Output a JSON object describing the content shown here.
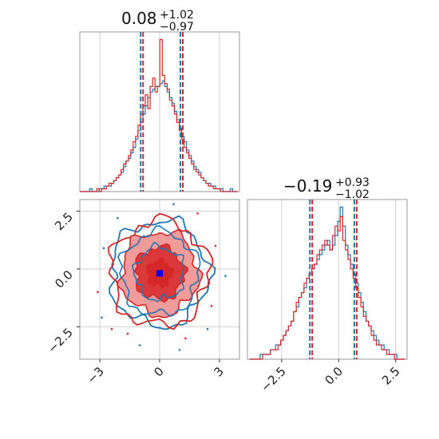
{
  "colors": {
    "series_a": "#1f77b4",
    "series_b": "#d62728",
    "marker": "#0000ff"
  },
  "chart_data": {
    "type": "corner",
    "params": [
      {
        "title": {
          "median": "0.08",
          "plus": "+1.02",
          "minus": "−0.97"
        },
        "xlim": [
          -4,
          4
        ],
        "quantiles": [
          -0.89,
          0.08,
          1.1
        ]
      },
      {
        "title": {
          "median": "−0.19",
          "plus": "+0.93",
          "minus": "−1.02"
        },
        "xlim": [
          -4,
          3
        ],
        "quantiles": [
          -1.21,
          -0.19,
          0.74
        ]
      }
    ],
    "hist1": {
      "bin_edges": [
        -4.0,
        3.9
      ],
      "series": [
        {
          "name": "",
          "color": "#1f77b4",
          "values": [
            0,
            0,
            0,
            0,
            1,
            0,
            0,
            0,
            1,
            1,
            2,
            2,
            2,
            3,
            4,
            5,
            6,
            7,
            9,
            11,
            12,
            14,
            16,
            19,
            22,
            25,
            28,
            31,
            34,
            36,
            37,
            38,
            38,
            39,
            40,
            38,
            36,
            34,
            32,
            29,
            26,
            23,
            20,
            18,
            15,
            13,
            11,
            9,
            8,
            7,
            5,
            4,
            3,
            3,
            2,
            2,
            1,
            1,
            1,
            0,
            0,
            0,
            1,
            0,
            0
          ]
        },
        {
          "name": "",
          "color": "#d62728",
          "values": [
            0,
            0,
            0,
            0,
            0,
            0,
            0,
            1,
            0,
            1,
            1,
            2,
            3,
            3,
            4,
            5,
            6,
            8,
            10,
            11,
            13,
            15,
            18,
            20,
            24,
            28,
            31,
            35,
            30,
            38,
            41,
            36,
            38,
            55,
            42,
            39,
            37,
            33,
            31,
            28,
            25,
            22,
            19,
            16,
            14,
            12,
            10,
            8,
            7,
            6,
            5,
            4,
            3,
            2,
            2,
            1,
            1,
            1,
            0,
            0,
            0,
            0,
            0,
            0,
            0
          ]
        }
      ]
    },
    "hist2": {
      "bin_edges": [
        -3.9,
        2.9
      ],
      "series": [
        {
          "name": "",
          "color": "#1f77b4",
          "values": [
            0,
            0,
            0,
            0,
            1,
            1,
            1,
            1,
            2,
            2,
            3,
            3,
            4,
            5,
            6,
            7,
            8,
            10,
            11,
            13,
            14,
            15,
            17,
            18,
            19,
            20,
            21,
            22,
            23,
            24,
            25,
            23,
            24,
            26,
            29,
            32,
            28,
            24,
            22,
            20,
            18,
            16,
            14,
            12,
            10,
            8,
            7,
            6,
            5,
            4,
            3,
            3,
            2,
            2,
            1,
            1,
            1,
            0,
            0,
            0
          ]
        },
        {
          "name": "",
          "color": "#d62728",
          "values": [
            0,
            0,
            0,
            0,
            0,
            1,
            1,
            1,
            2,
            2,
            2,
            3,
            4,
            5,
            6,
            7,
            8,
            10,
            12,
            13,
            14,
            16,
            17,
            18,
            19,
            20,
            22,
            23,
            24,
            25,
            24,
            23,
            26,
            28,
            27,
            30,
            25,
            23,
            21,
            19,
            17,
            15,
            13,
            11,
            9,
            8,
            7,
            5,
            4,
            3,
            3,
            2,
            2,
            1,
            1,
            1,
            0,
            0,
            0,
            0
          ]
        }
      ]
    },
    "scatter2d": {
      "xlim": [
        -4,
        4
      ],
      "ylim": [
        -3.9,
        3.0
      ],
      "contour_radii": [
        0.6,
        1.2,
        1.9,
        2.4
      ],
      "truth_marker": [
        0.0,
        -0.19
      ]
    },
    "axes": {
      "hist1_xticks": [
        -3,
        0,
        3
      ],
      "hist2_xticks": [
        -2.5,
        0.0,
        2.5
      ],
      "scatter_xticks": [
        -3,
        0,
        3
      ],
      "scatter_yticks": [
        2.5,
        0.0,
        -2.5
      ],
      "scatter_xtick_labels": [
        "−3",
        "0",
        "3"
      ],
      "scatter_ytick_labels": [
        "2.5",
        "0.0",
        "−2.5"
      ],
      "hist2_xtick_labels": [
        "−2.5",
        "0.0",
        "2.5"
      ]
    }
  }
}
